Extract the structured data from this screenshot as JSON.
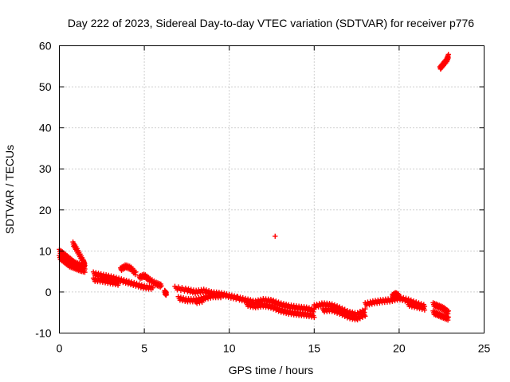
{
  "chart_data": {
    "type": "scatter",
    "title": "Day 222 of 2023, Sidereal Day-to-day VTEC variation (SDTVAR) for receiver p776",
    "xlabel": "GPS time / hours",
    "ylabel": "SDTVAR / TECUs",
    "xlim": [
      0,
      25
    ],
    "ylim": [
      -10,
      60
    ],
    "xticks": [
      0,
      5,
      10,
      15,
      20,
      25
    ],
    "yticks": [
      -10,
      0,
      10,
      20,
      30,
      40,
      50,
      60
    ],
    "grid": true,
    "marker": "plus",
    "color": "#ff0000",
    "series": [
      {
        "name": "SDTVAR",
        "segments": [
          {
            "x": [
              0.0,
              0.3,
              0.6,
              0.9,
              1.2,
              1.5
            ],
            "y": [
              8.5,
              7.5,
              6.5,
              6.0,
              5.5,
              5.2
            ]
          },
          {
            "x": [
              0.0,
              0.3,
              0.6,
              0.9,
              1.2,
              1.5
            ],
            "y": [
              10.0,
              9.0,
              8.0,
              7.0,
              6.5,
              6.0
            ]
          },
          {
            "x": [
              0.8,
              1.0,
              1.2,
              1.4,
              1.5
            ],
            "y": [
              11.8,
              10.5,
              9.0,
              7.5,
              6.5
            ]
          },
          {
            "x": [
              2.0,
              2.5,
              3.0,
              3.5,
              4.0,
              4.5,
              5.0,
              5.5
            ],
            "y": [
              4.5,
              4.0,
              3.6,
              3.0,
              2.4,
              1.8,
              1.2,
              1.0
            ]
          },
          {
            "x": [
              2.0,
              2.5,
              3.0,
              3.5
            ],
            "y": [
              3.0,
              2.8,
              2.4,
              2.0
            ]
          },
          {
            "x": [
              3.6,
              3.9,
              4.2,
              4.5
            ],
            "y": [
              5.5,
              6.3,
              5.8,
              4.5
            ]
          },
          {
            "x": [
              4.7,
              5.0,
              5.3,
              5.7,
              6.0
            ],
            "y": [
              3.5,
              4.0,
              3.0,
              2.0,
              1.5
            ]
          },
          {
            "x": [
              6.2,
              6.3
            ],
            "y": [
              0.0,
              -0.5
            ]
          },
          {
            "x": [
              6.8,
              7.5,
              8.0,
              8.5,
              9.0,
              9.5,
              10.0,
              10.5
            ],
            "y": [
              1.0,
              0.5,
              0.0,
              0.3,
              -0.3,
              -0.5,
              -1.0,
              -1.5
            ]
          },
          {
            "x": [
              7.0,
              7.5,
              8.0,
              8.5,
              9.0,
              9.5
            ],
            "y": [
              -1.5,
              -2.0,
              -2.0,
              -1.5,
              -1.0,
              -1.0
            ]
          },
          {
            "x": [
              8.0,
              8.5
            ],
            "y": [
              -2.5,
              -2.0
            ]
          },
          {
            "x": [
              10.5,
              11.0,
              11.5,
              12.0,
              12.5,
              13.0,
              13.5,
              14.0,
              14.5,
              15.0
            ],
            "y": [
              -1.5,
              -2.0,
              -2.5,
              -2.0,
              -2.2,
              -3.0,
              -3.5,
              -3.8,
              -4.0,
              -4.5
            ]
          },
          {
            "x": [
              11.0,
              11.5,
              12.0,
              12.5,
              13.0,
              13.5,
              14.0,
              14.5,
              15.0
            ],
            "y": [
              -3.0,
              -3.5,
              -3.2,
              -3.6,
              -4.5,
              -5.0,
              -5.3,
              -5.5,
              -5.8
            ]
          },
          {
            "x": [
              12.7
            ],
            "y": [
              13.2
            ]
          },
          {
            "x": [
              15.0,
              15.5,
              16.0,
              16.5,
              17.0,
              17.5,
              18.0
            ],
            "y": [
              -3.5,
              -3.0,
              -3.2,
              -4.0,
              -5.0,
              -5.5,
              -4.5
            ]
          },
          {
            "x": [
              15.5,
              16.0,
              16.5,
              17.0,
              17.5,
              18.0
            ],
            "y": [
              -4.5,
              -4.3,
              -5.0,
              -6.0,
              -6.5,
              -5.5
            ]
          },
          {
            "x": [
              18.0,
              18.5,
              19.0,
              19.5,
              20.0,
              20.5,
              21.0,
              21.5
            ],
            "y": [
              -3.0,
              -2.5,
              -2.2,
              -2.0,
              -1.5,
              -2.0,
              -2.8,
              -3.5
            ]
          },
          {
            "x": [
              19.6,
              19.8,
              20.0
            ],
            "y": [
              -1.0,
              -0.5,
              -1.0
            ]
          },
          {
            "x": [
              20.5,
              21.0,
              21.5
            ],
            "y": [
              -3.0,
              -3.5,
              -4.0
            ]
          },
          {
            "x": [
              22.0,
              22.3,
              22.6,
              22.9
            ],
            "y": [
              -3.0,
              -3.5,
              -4.0,
              -5.0
            ]
          },
          {
            "x": [
              22.0,
              22.3,
              22.6,
              22.9
            ],
            "y": [
              -5.0,
              -5.5,
              -6.0,
              -6.5
            ]
          },
          {
            "x": [
              22.4,
              22.6,
              22.8,
              22.9
            ],
            "y": [
              54.5,
              55.5,
              56.5,
              57.5
            ]
          }
        ]
      }
    ]
  }
}
